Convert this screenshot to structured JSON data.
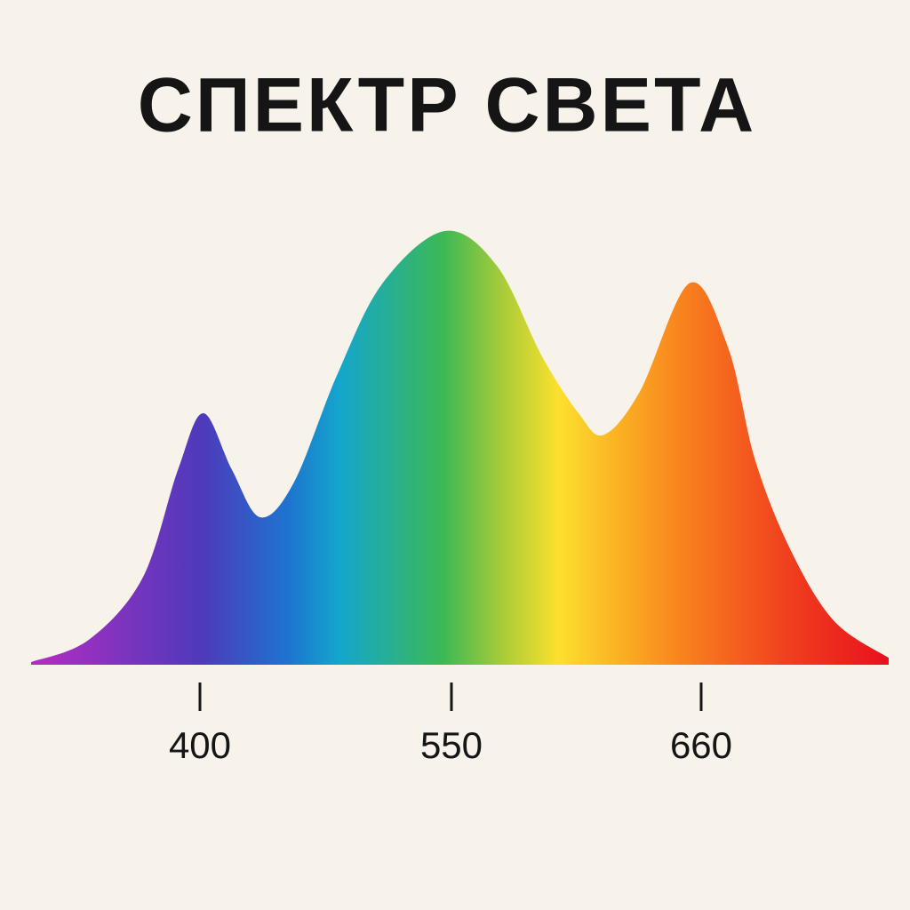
{
  "chart_data": {
    "type": "area",
    "title": "СПЕКТР СВЕТА",
    "x": [
      300,
      334,
      366,
      387,
      402,
      419,
      436,
      456,
      482,
      509,
      546,
      570,
      590,
      606,
      617,
      633,
      655,
      672,
      684,
      700,
      719,
      743
    ],
    "values": [
      0.6,
      5.7,
      20,
      45,
      58,
      45,
      34,
      42,
      67,
      88,
      100,
      92,
      71,
      58,
      53,
      63,
      88,
      73,
      47,
      26,
      10,
      1.6
    ],
    "xlim": [
      300,
      743
    ],
    "xticks": [
      400,
      550,
      660
    ],
    "ylim": [
      0,
      100
    ],
    "grid": false
  }
}
